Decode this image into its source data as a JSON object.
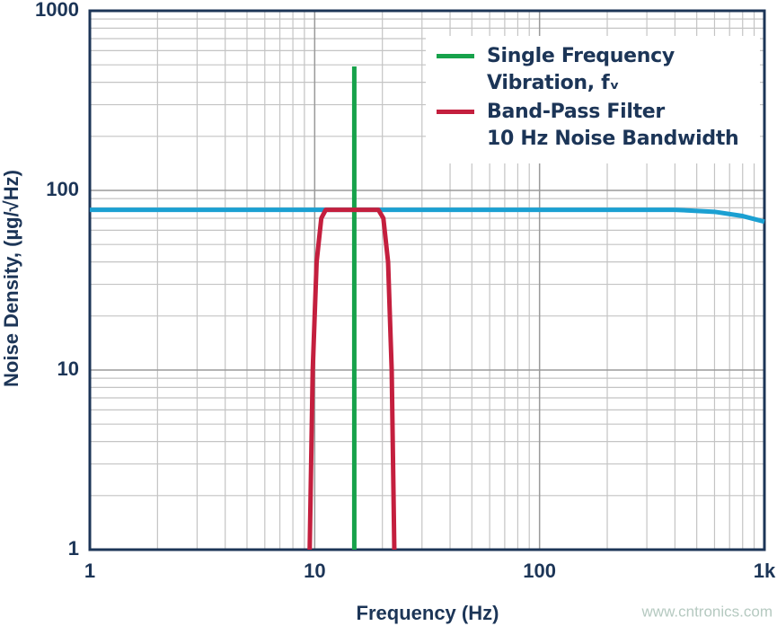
{
  "chart_data": {
    "type": "line",
    "xlabel": "Frequency (Hz)",
    "ylabel": "Noise Density, (µg/√Hz)",
    "xscale": "log",
    "yscale": "log",
    "xlim": [
      1,
      1000
    ],
    "ylim": [
      1,
      1000
    ],
    "xticks": [
      1,
      10,
      100,
      {
        "value": 1000,
        "label": "1k"
      }
    ],
    "yticks": [
      1,
      10,
      100,
      1000
    ],
    "grid": true,
    "legend": "upper right",
    "series": [
      {
        "name": "Single Frequency\nVibration, fᵥ",
        "color": "#17a24b",
        "x": [
          15,
          15
        ],
        "values": [
          1,
          490
        ]
      },
      {
        "name": "Band-Pass Filter\n10 Hz Noise Bandwidth",
        "color": "#c41f3e",
        "x": [
          9.5,
          9.8,
          10.2,
          10.7,
          11.2,
          19.2,
          20.2,
          21.2,
          22.0,
          22.6
        ],
        "values": [
          1,
          10,
          40,
          70,
          78,
          78,
          70,
          40,
          10,
          1
        ]
      },
      {
        "color": "#1ba0d2",
        "x": [
          1,
          400,
          600,
          800,
          1000
        ],
        "values": [
          78,
          78,
          76,
          72,
          67
        ]
      }
    ],
    "watermark": "www.cntronics.com"
  }
}
